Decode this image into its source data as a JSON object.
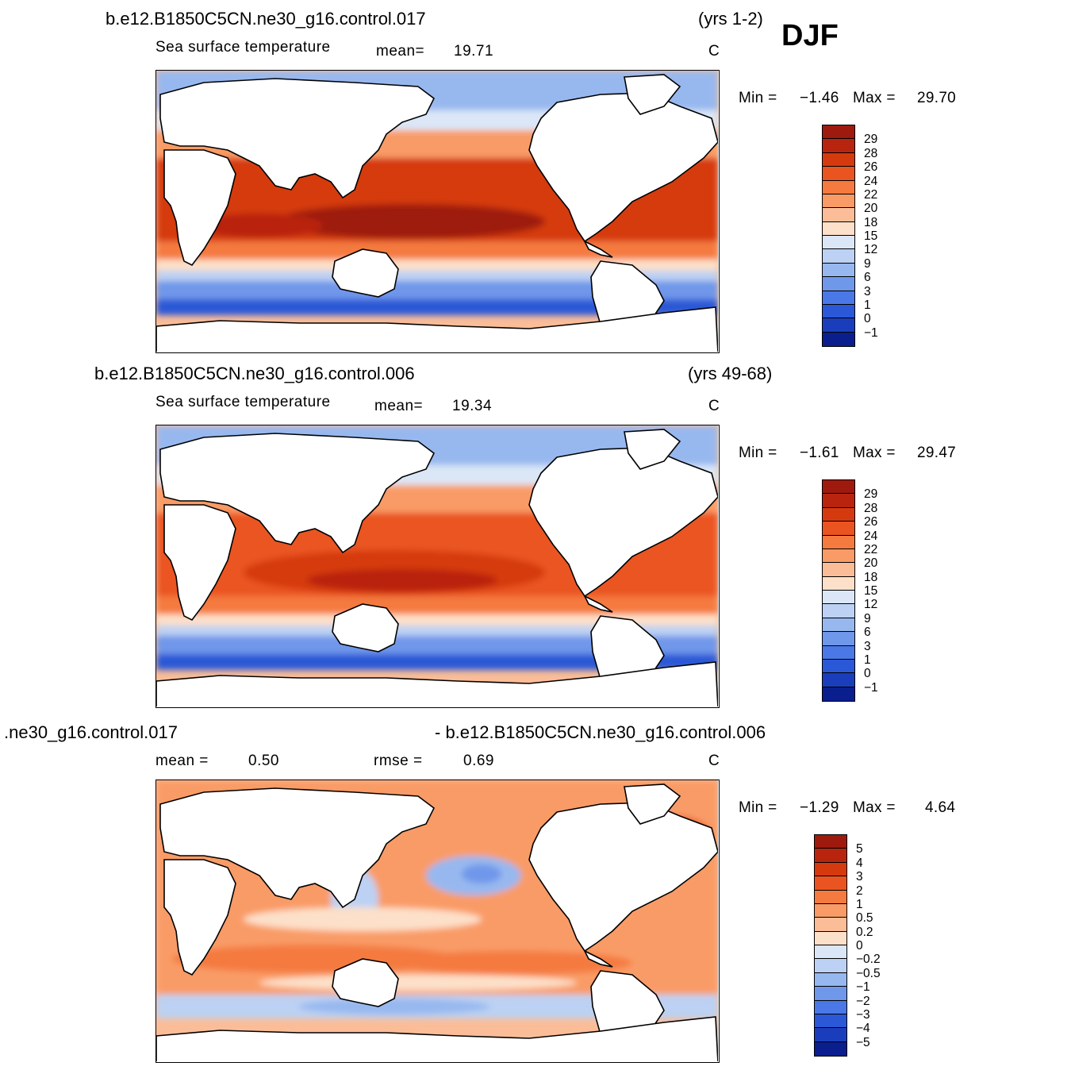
{
  "season": "DJF",
  "panels": [
    {
      "case_title": "b.e12.B1850C5CN.ne30_g16.control.017",
      "years": "(yrs 1-2)",
      "variable": "Sea surface temperature",
      "mean_label": "mean=",
      "mean_value": "19.71",
      "units": "C",
      "min_label": "Min =",
      "min_value": "−1.46",
      "max_label": "Max =",
      "max_value": "29.70",
      "colorbar_labels": [
        "29",
        "28",
        "26",
        "24",
        "22",
        "20",
        "18",
        "15",
        "12",
        "9",
        "6",
        "3",
        "1",
        "0",
        "−1"
      ],
      "colors": [
        "#9e1a0e",
        "#b9240f",
        "#d53a0f",
        "#ea5420",
        "#f47a3f",
        "#f99b66",
        "#fbbd98",
        "#fde0c9",
        "#dbe7f7",
        "#bcd1f3",
        "#97b8ef",
        "#6f97ea",
        "#4a78e6",
        "#2b58d6",
        "#1a3ebb",
        "#0a1e8e"
      ]
    },
    {
      "case_title": "b.e12.B1850C5CN.ne30_g16.control.006",
      "years": "(yrs 49-68)",
      "variable": "Sea surface temperature",
      "mean_label": "mean=",
      "mean_value": "19.34",
      "units": "C",
      "min_label": "Min =",
      "min_value": "−1.61",
      "max_label": "Max =",
      "max_value": "29.47",
      "colorbar_labels": [
        "29",
        "28",
        "26",
        "24",
        "22",
        "20",
        "18",
        "15",
        "12",
        "9",
        "6",
        "3",
        "1",
        "0",
        "−1"
      ],
      "colors": [
        "#9e1a0e",
        "#b9240f",
        "#d53a0f",
        "#ea5420",
        "#f47a3f",
        "#f99b66",
        "#fbbd98",
        "#fde0c9",
        "#dbe7f7",
        "#bcd1f3",
        "#97b8ef",
        "#6f97ea",
        "#4a78e6",
        "#2b58d6",
        "#1a3ebb",
        "#0a1e8e"
      ]
    },
    {
      "left_title": ".ne30_g16.control.017",
      "right_title": "- b.e12.B1850C5CN.ne30_g16.control.006",
      "mean_label": "mean =",
      "mean_value": "0.50",
      "rmse_label": "rmse =",
      "rmse_value": "0.69",
      "units": "C",
      "min_label": "Min =",
      "min_value": "−1.29",
      "max_label": "Max =",
      "max_value": "4.64",
      "colorbar_labels": [
        "5",
        "4",
        "3",
        "2",
        "1",
        "0.5",
        "0.2",
        "0",
        "−0.2",
        "−0.5",
        "−1",
        "−2",
        "−3",
        "−4",
        "−5"
      ],
      "colors": [
        "#9e1a0e",
        "#b9240f",
        "#d53a0f",
        "#ea5420",
        "#f47a3f",
        "#f99b66",
        "#fbbd98",
        "#fde0c9",
        "#dbe7f7",
        "#bcd1f3",
        "#97b8ef",
        "#6f97ea",
        "#4a78e6",
        "#2b58d6",
        "#1a3ebb",
        "#0a1e8e"
      ]
    }
  ]
}
